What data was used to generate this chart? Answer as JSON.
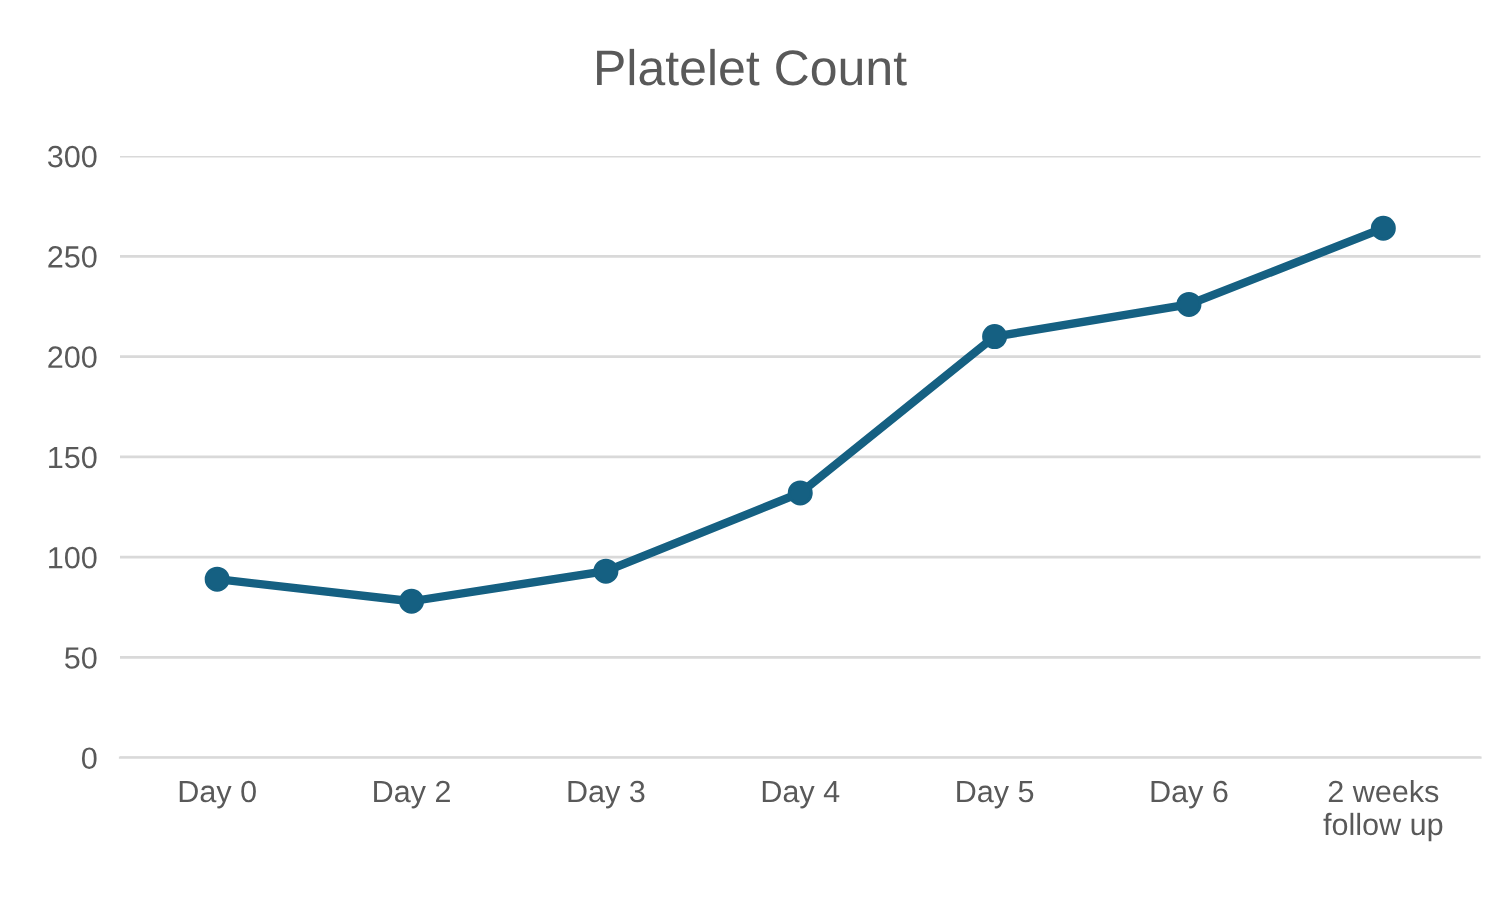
{
  "chart_data": {
    "type": "line",
    "title": "Platelet Count",
    "categories": [
      "Day 0",
      "Day 2",
      "Day 3",
      "Day 4",
      "Day 5",
      "Day 6",
      "2 weeks follow up"
    ],
    "series": [
      {
        "color": "#156082",
        "values": [
          89,
          78,
          93,
          132,
          210,
          226,
          264
        ]
      }
    ],
    "ylim": [
      0,
      300
    ],
    "yticks": [
      0,
      50,
      100,
      150,
      200,
      250,
      300
    ],
    "grid": "y",
    "marker": "circle",
    "line_style": "solid"
  }
}
